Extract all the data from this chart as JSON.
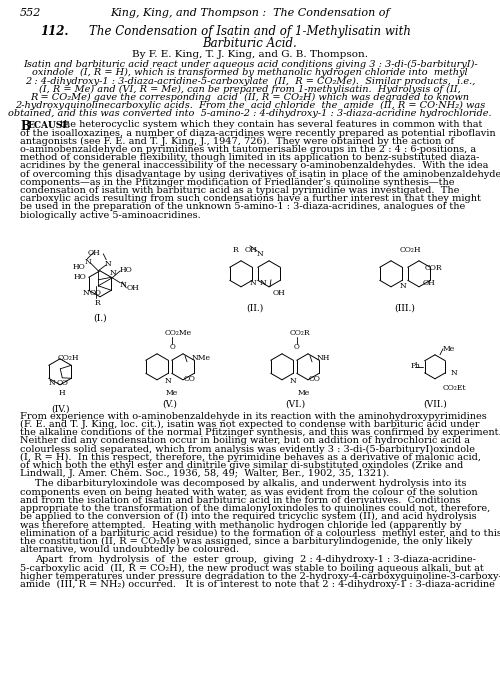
{
  "page_number": "552",
  "header_italic": "King, King, and Thompson :  The Condensation of",
  "title_num": "112.",
  "title_line1": "The Condensation of Isatin and of 1-Methylisatin with",
  "title_line2": "Barbituric Acid.",
  "authors": "By F. E. King, T. J. King, and G. B. Thompson.",
  "abstract_lines": [
    "Isatin and barbituric acid react under aqueous acid conditions giving 3 : 3-di-(5-barbituryI)-",
    "oxindole  (I, R = H), which is transformed by methanolic hydrogen chloride into  methyl",
    "2 : 4-dihydroxy-1 : 3-diaza-acridine-5-carboxylate  (II,  R = CO₂Me).  Similar products,  i.e.,",
    "(I, R = Me) and (VI, R = Me), can be prepared from 1-methylisatin.  Hydrolysis of (II,",
    "R = CO₂Me) gave the corresponding  acid  (II, R = CO₂H) which was degraded to known",
    "2-hydroxyquinolinecarboxylic acids.  From the  acid chloride  the  amide  (II, R = CO·NH₂) was",
    "obtained, and this was converted into  5-amino-2 : 4-dihydroxy-1 : 3-diaza-acridine hydrochloride."
  ],
  "body1_lines": [
    "BECAUSE the heterocyclic system which they contain has several features in common with that",
    "of the isoalloxazines, a number of diaza-acridines were recently prepared as potential riboflavin",
    "antagonists (see F. E. and T. J. King, J., 1947, 726).  They were obtained by the action of",
    "o-aminobenzaldehyde on pyrimidines with tautomerisable groups in the 2 : 4 : 6-positions, a",
    "method of considerable flexibility, though limited in its application to benz-substituted diaza-",
    "acridines by the general inaccessibility of the necessary o-aminobenzaldehydes.  With the idea",
    "of overcoming this disadvantage by using derivatives of isatin in place of the aminobenzaldehyde",
    "components—as in the Pfitzinger modification of Friedländer’s quinoline synthesis—the",
    "condensation of isatin with barbituric acid as a typical pyrimidine was investigated.  The",
    "carboxylic acids resulting from such condensations have a further interest in that they might",
    "be used in the preparation of the unknown 5-amino-1 : 3-diaza-acridines, analogues of the",
    "biologically active 5-aminoacridines."
  ],
  "body2_lines": [
    "From experience with o-aminobenzaldehyde in its reaction with the aminohydroxypyrimidines",
    "(F. E. and T. J. King, loc. cit.), isatin was not expected to condense with barbituric acid under",
    "the alkaline conditions of the normal Pfitzinger synthesis, and this was confirmed by experiment.",
    "Neither did any condensation occur in boiling water, but on addition of hydrochloric acid a",
    "colourless solid separated, which from analysis was evidently 3 : 3-di-(5-barbituryI)oxindole",
    "(I, R = H).  In this respect, therefore, the pyrimidine behaves as a derivative of malonic acid,",
    "of which both the ethyl ester and dinitrile give similar di-substituted oxindoles (Zrike and",
    "Lindwall, J. Amer. Chem. Soc., 1936, 58, 49;  Walter, Ber., 1902, 35, 1321)."
  ],
  "body3_lines": [
    "The dibarbituryloxindole was decomposed by alkalis, and underwent hydrolysis into its",
    "components even on being heated with water, as was evident from the colour of the solution",
    "and from the isolation of isatin and barbituric acid in the form of derivatives.  Conditions",
    "appropriate to the transformation of the dimalonyIoxindoles to quinolines could not, therefore,",
    "be applied to the conversion of (I) into the required tricyclic system (II), and acid hydrolysis",
    "was therefore attempted.  Heating with methanolic hydrogen chloride led (apparently by",
    "elimination of a barbituric acid residue) to the formation of a colourless  methyl ester, and to this",
    "the constitution (II, R = CO₂Me) was assigned, since a barbiturylindogenide, the only likely",
    "alternative, would undoubtedly be coloured."
  ],
  "body4_lines": [
    "Apart  from  hydrolysis  of  the  ester  group,  giving  2 : 4-dihydroxy-1 : 3-diaza-acridine-",
    "5-carboxylic acid  (II, R = CO₂H), the new product was stable to boiling aqueous alkali, but at",
    "higher temperatures under pressure degradation to the 2-hydroxy-4-carboxyquinoline-3-carboxy-",
    "amide  (III, R = NH₂) occurred.   It is of interest to note that 2 : 4-dihydroxy-1 : 3-diaza-acridine"
  ],
  "bg_color": "#ffffff",
  "lmargin": 20,
  "rmargin": 480,
  "fs_header": 8.0,
  "fs_title": 8.5,
  "fs_authors": 7.5,
  "fs_abstract": 7.0,
  "fs_body": 7.0,
  "lh": 8.2
}
